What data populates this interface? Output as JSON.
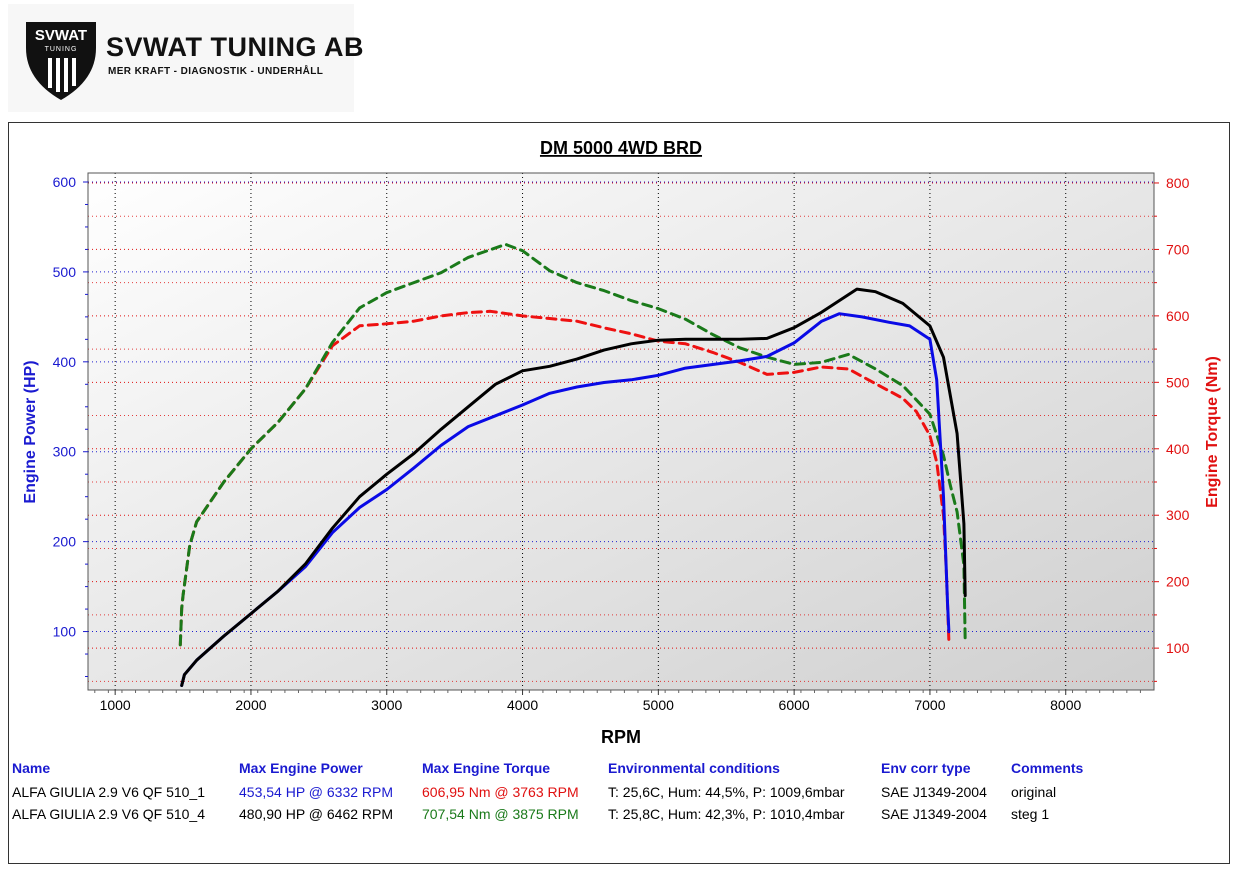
{
  "logo": {
    "badge_text": "SVWAT",
    "badge_sub": "TUNING",
    "company": "SVWAT TUNING AB",
    "tagline": "MER KRAFT - DIAGNOSTIK - UNDERHÅLL"
  },
  "colors": {
    "power_axis": "#1a1ad0",
    "torque_axis": "#e01010",
    "run1_power": "#0a0ae6",
    "run1_torque": "#ee1111",
    "run2_power": "#000000",
    "run2_torque": "#1a7a1a"
  },
  "chart_data": {
    "type": "line",
    "title": "DM 5000 4WD BRD",
    "xlabel": "RPM",
    "ylabel": "Engine Power (HP)",
    "y2label": "Engine Torque (Nm)",
    "xlim": [
      800,
      8650
    ],
    "ylim": [
      35,
      610
    ],
    "y2lim": [
      37,
      815
    ],
    "xticks": [
      1000,
      2000,
      3000,
      4000,
      5000,
      6000,
      7000,
      8000
    ],
    "yticks": [
      100,
      200,
      300,
      400,
      500,
      600
    ],
    "y2ticks": [
      100,
      200,
      300,
      400,
      500,
      600,
      700,
      800
    ],
    "grid": true,
    "series": [
      {
        "name": "ALFA GIULIA 2.9 V6 QF 510_1",
        "metric": "power",
        "axis": "left",
        "style": "solid",
        "x": [
          1490,
          1510,
          1600,
          1800,
          2000,
          2200,
          2400,
          2600,
          2800,
          3000,
          3200,
          3400,
          3600,
          3800,
          4000,
          4200,
          4400,
          4600,
          4800,
          5000,
          5200,
          5400,
          5600,
          5800,
          6000,
          6200,
          6332,
          6500,
          6700,
          6850,
          7000,
          7050,
          7100,
          7130,
          7140
        ],
        "y": [
          40,
          52,
          68,
          95,
          120,
          145,
          172,
          210,
          238,
          258,
          282,
          307,
          328,
          340,
          352,
          365,
          372,
          377,
          380,
          385,
          393,
          397,
          401,
          406,
          421,
          445,
          453.54,
          450,
          444,
          440,
          425,
          380,
          250,
          130,
          100
        ]
      },
      {
        "name": "ALFA GIULIA 2.9 V6 QF 510_4",
        "metric": "power",
        "axis": "left",
        "style": "solid",
        "x": [
          1490,
          1510,
          1600,
          1800,
          2000,
          2200,
          2400,
          2600,
          2800,
          3000,
          3200,
          3400,
          3600,
          3800,
          4000,
          4200,
          4400,
          4600,
          4800,
          5000,
          5200,
          5400,
          5600,
          5800,
          6000,
          6200,
          6462,
          6600,
          6800,
          7000,
          7100,
          7200,
          7250,
          7260
        ],
        "y": [
          40,
          52,
          68,
          95,
          120,
          145,
          175,
          215,
          250,
          275,
          298,
          325,
          350,
          375,
          390,
          395,
          403,
          413,
          420,
          424,
          425,
          425,
          425,
          426,
          438,
          455,
          480.9,
          478,
          465,
          440,
          405,
          320,
          220,
          140
        ]
      },
      {
        "name": "ALFA GIULIA 2.9 V6 QF 510_1",
        "metric": "torque",
        "axis": "right",
        "style": "dashed",
        "x": [
          1480,
          1490,
          1500,
          1550,
          1600,
          1800,
          2000,
          2200,
          2400,
          2600,
          2800,
          3000,
          3200,
          3400,
          3600,
          3763,
          4000,
          4200,
          4400,
          4600,
          4800,
          5000,
          5200,
          5400,
          5600,
          5800,
          6000,
          6200,
          6400,
          6600,
          6800,
          6900,
          7000,
          7050,
          7100,
          7120,
          7140
        ],
        "y": [
          105,
          160,
          180,
          255,
          290,
          350,
          400,
          440,
          490,
          555,
          585,
          588,
          592,
          600,
          605,
          606.95,
          600,
          596,
          592,
          582,
          573,
          562,
          558,
          545,
          530,
          512,
          515,
          523,
          520,
          498,
          476,
          456,
          420,
          380,
          300,
          220,
          110
        ]
      },
      {
        "name": "ALFA GIULIA 2.9 V6 QF 510_4",
        "metric": "torque",
        "axis": "right",
        "style": "dashed",
        "x": [
          1480,
          1490,
          1500,
          1550,
          1600,
          1800,
          2000,
          2200,
          2400,
          2600,
          2800,
          3000,
          3200,
          3400,
          3600,
          3875,
          4000,
          4200,
          4400,
          4600,
          4800,
          5000,
          5200,
          5400,
          5600,
          5800,
          6000,
          6200,
          6400,
          6600,
          6800,
          7000,
          7100,
          7150,
          7200,
          7250,
          7260
        ],
        "y": [
          105,
          160,
          180,
          255,
          290,
          350,
          400,
          440,
          490,
          560,
          612,
          635,
          650,
          665,
          688,
          707.54,
          698,
          668,
          650,
          638,
          623,
          611,
          595,
          572,
          552,
          538,
          527,
          530,
          542,
          520,
          495,
          452,
          390,
          345,
          305,
          225,
          110
        ]
      }
    ],
    "markers": {
      "run1_max_power_rpm": 6332,
      "run1_max_torque_rpm": 3763,
      "run2_max_power_rpm": 6462,
      "run2_max_torque_rpm": 3875
    }
  },
  "results": {
    "headers": {
      "name": "Name",
      "max_power": "Max Engine Power",
      "max_torque": "Max Engine Torque",
      "env": "Environmental conditions",
      "env_corr": "Env corr type",
      "comments": "Comments"
    },
    "rows": [
      {
        "name": "ALFA GIULIA 2.9 V6 QF 510_1",
        "max_power": "453,54 HP @ 6332 RPM",
        "max_torque": "606,95 Nm @ 3763 RPM",
        "env": "T: 25,6C, Hum: 44,5%, P: 1009,6mbar",
        "env_corr": "SAE J1349-2004",
        "comments": "original"
      },
      {
        "name": "ALFA GIULIA 2.9 V6 QF 510_4",
        "max_power": "480,90 HP @ 6462 RPM",
        "max_torque": "707,54 Nm @ 3875 RPM",
        "env": "T: 25,8C, Hum: 42,3%, P: 1010,4mbar",
        "env_corr": "SAE J1349-2004",
        "comments": "steg 1"
      }
    ]
  }
}
